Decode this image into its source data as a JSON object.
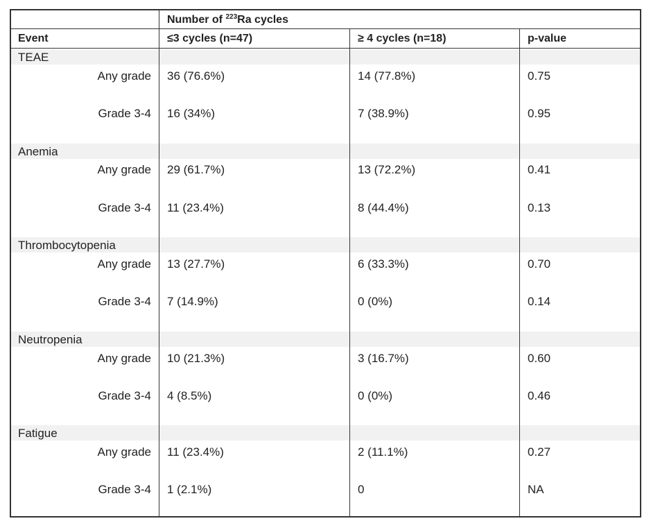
{
  "header": {
    "span_title_prefix": "Number of ",
    "span_title_sup": "223",
    "span_title_suffix": "Ra cycles",
    "columns": [
      "Event",
      "≤3 cycles (n=47)",
      "≥ 4 cycles (n=18)",
      "p-value"
    ]
  },
  "groups": [
    {
      "event": "TEAE",
      "rows": [
        {
          "label": "Any grade",
          "low": "36 (76.6%)",
          "high": "14 (77.8%)",
          "p": "0.75"
        },
        {
          "label": "Grade 3-4",
          "low": "16 (34%)",
          "high": "7 (38.9%)",
          "p": "0.95"
        }
      ]
    },
    {
      "event": "Anemia",
      "rows": [
        {
          "label": "Any grade",
          "low": "29 (61.7%)",
          "high": "13 (72.2%)",
          "p": "0.41"
        },
        {
          "label": "Grade 3-4",
          "low": "11 (23.4%)",
          "high": "8 (44.4%)",
          "p": "0.13"
        }
      ]
    },
    {
      "event": "Thrombocytopenia",
      "rows": [
        {
          "label": "Any grade",
          "low": "13 (27.7%)",
          "high": "6 (33.3%)",
          "p": "0.70"
        },
        {
          "label": "Grade 3-4",
          "low": "7 (14.9%)",
          "high": "0 (0%)",
          "p": "0.14"
        }
      ]
    },
    {
      "event": "Neutropenia",
      "rows": [
        {
          "label": "Any grade",
          "low": "10 (21.3%)",
          "high": "3 (16.7%)",
          "p": "0.60"
        },
        {
          "label": "Grade 3-4",
          "low": "4 (8.5%)",
          "high": "0 (0%)",
          "p": "0.46"
        }
      ]
    },
    {
      "event": "Fatigue",
      "rows": [
        {
          "label": "Any grade",
          "low": "11 (23.4%)",
          "high": "2 (11.1%)",
          "p": "0.27"
        },
        {
          "label": "Grade 3-4",
          "low": "1 (2.1%)",
          "high": "0",
          "p": "NA"
        }
      ]
    }
  ]
}
